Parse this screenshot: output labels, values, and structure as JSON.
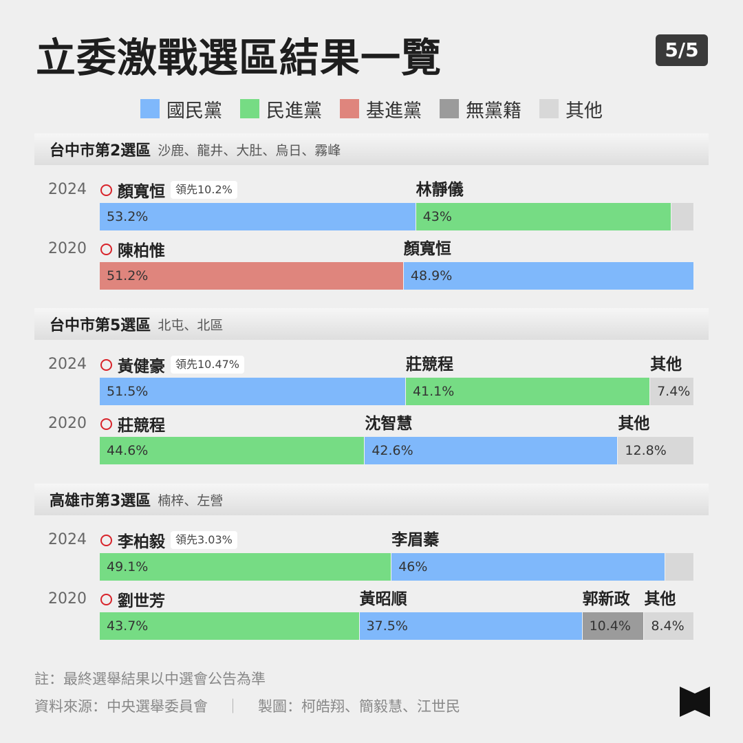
{
  "header": {
    "title": "立委激戰選區結果一覽",
    "page_indicator": "5/5"
  },
  "colors": {
    "kmt": "#7fb8fb",
    "dpp": "#76dc84",
    "tsp": "#df857d",
    "independent": "#9b9b9b",
    "other": "#d8d8d8"
  },
  "legend": [
    {
      "label": "國民黨",
      "color": "#7fb8fb"
    },
    {
      "label": "民進黨",
      "color": "#76dc84"
    },
    {
      "label": "基進黨",
      "color": "#df857d"
    },
    {
      "label": "無黨籍",
      "color": "#9b9b9b"
    },
    {
      "label": "其他",
      "color": "#d8d8d8"
    }
  ],
  "chart_data": {
    "type": "bar",
    "orientation": "horizontal",
    "stacked": true,
    "unit": "%",
    "sections": [
      {
        "name": "台中市第2選區",
        "areas": "沙鹿、龍井、大肚、烏日、霧峰",
        "rows": [
          {
            "year": "2024",
            "winner": "顏寬恒",
            "lead": "領先10.2%",
            "segments": [
              {
                "value": 53.2,
                "label": "53.2%",
                "party": "kmt",
                "candidate": ""
              },
              {
                "value": 43,
                "label": "43%",
                "party": "dpp",
                "candidate": "林靜儀"
              },
              {
                "value": 3.8,
                "label": "",
                "party": "other",
                "candidate": ""
              }
            ]
          },
          {
            "year": "2020",
            "winner": "陳柏惟",
            "lead": "",
            "segments": [
              {
                "value": 51.2,
                "label": "51.2%",
                "party": "tsp",
                "candidate": ""
              },
              {
                "value": 48.9,
                "label": "48.9%",
                "party": "kmt",
                "candidate": "顏寬恒"
              }
            ]
          }
        ]
      },
      {
        "name": "台中市第5選區",
        "areas": "北屯、北區",
        "rows": [
          {
            "year": "2024",
            "winner": "黃健豪",
            "lead": "領先10.47%",
            "segments": [
              {
                "value": 51.5,
                "label": "51.5%",
                "party": "kmt",
                "candidate": ""
              },
              {
                "value": 41.1,
                "label": "41.1%",
                "party": "dpp",
                "candidate": "莊競程"
              },
              {
                "value": 7.4,
                "label": "7.4%",
                "party": "other",
                "candidate": "其他"
              }
            ]
          },
          {
            "year": "2020",
            "winner": "莊競程",
            "lead": "",
            "segments": [
              {
                "value": 44.6,
                "label": "44.6%",
                "party": "dpp",
                "candidate": ""
              },
              {
                "value": 42.6,
                "label": "42.6%",
                "party": "kmt",
                "candidate": "沈智慧"
              },
              {
                "value": 12.8,
                "label": "12.8%",
                "party": "other",
                "candidate": "其他"
              }
            ]
          }
        ]
      },
      {
        "name": "高雄市第3選區",
        "areas": "楠梓、左營",
        "rows": [
          {
            "year": "2024",
            "winner": "李柏毅",
            "lead": "領先3.03%",
            "segments": [
              {
                "value": 49.1,
                "label": "49.1%",
                "party": "dpp",
                "candidate": ""
              },
              {
                "value": 46,
                "label": "46%",
                "party": "kmt",
                "candidate": "李眉蓁"
              },
              {
                "value": 4.9,
                "label": "",
                "party": "other",
                "candidate": ""
              }
            ]
          },
          {
            "year": "2020",
            "winner": "劉世芳",
            "lead": "",
            "segments": [
              {
                "value": 43.7,
                "label": "43.7%",
                "party": "dpp",
                "candidate": ""
              },
              {
                "value": 37.5,
                "label": "37.5%",
                "party": "kmt",
                "candidate": "黃昭順"
              },
              {
                "value": 10.4,
                "label": "10.4%",
                "party": "independent",
                "candidate": "郭新政"
              },
              {
                "value": 8.4,
                "label": "8.4%",
                "party": "other",
                "candidate": "其他"
              }
            ]
          }
        ]
      }
    ]
  },
  "footer": {
    "note": "註：最終選舉結果以中選會公告為準",
    "source": "資料來源：中央選舉委員會",
    "separator": "｜",
    "credits": "製圖：柯皓翔、簡毅慧、江世民"
  },
  "logo": {
    "icon": "bowtie-logo-icon"
  }
}
